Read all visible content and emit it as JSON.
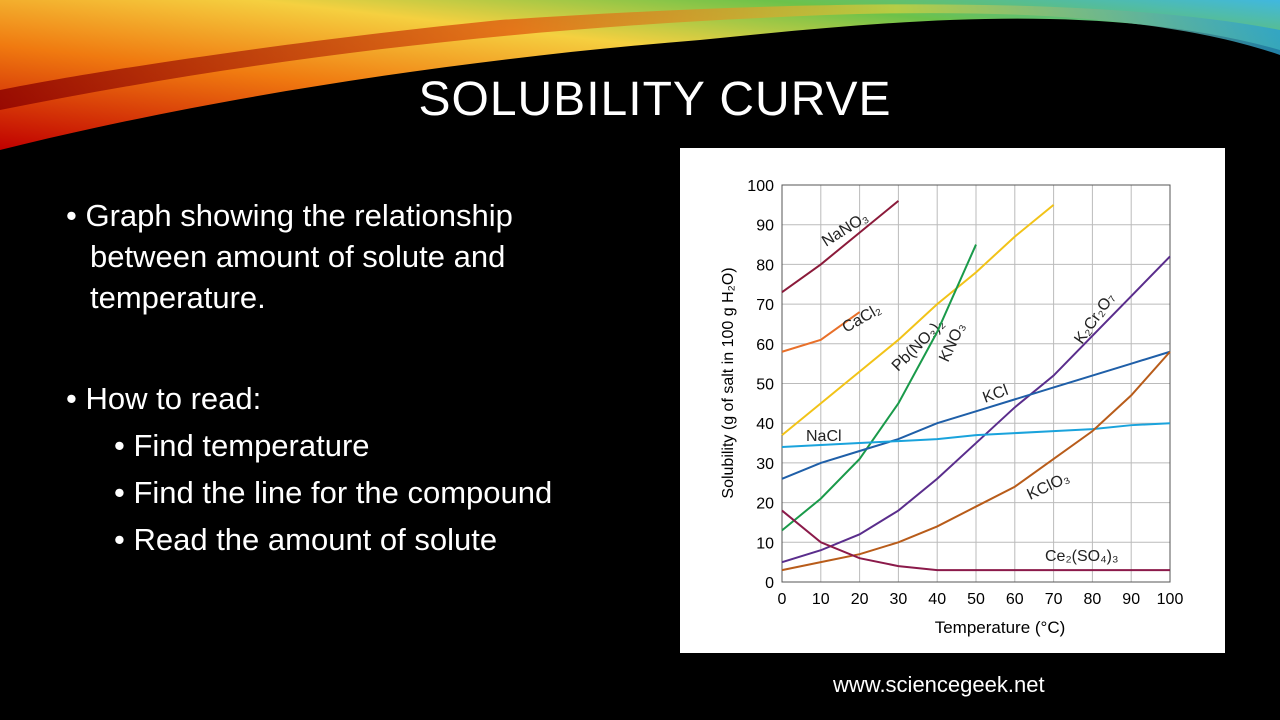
{
  "slide": {
    "title": "SOLUBILITY CURVE",
    "bullets": [
      {
        "text": "Graph showing the relationship between amount of solute and temperature."
      },
      {
        "text": "How to read:",
        "items": [
          "Find temperature",
          "Find the line for the compound",
          "Read the amount of solute"
        ]
      }
    ],
    "source": "www.sciencegeek.net"
  },
  "chart_data": {
    "type": "line",
    "xlabel": "Temperature (°C)",
    "ylabel": "Solubility (g of salt in 100 g H₂O)",
    "x": [
      0,
      10,
      20,
      30,
      40,
      50,
      60,
      70,
      80,
      90,
      100
    ],
    "xlim": [
      0,
      100
    ],
    "ylim": [
      0,
      100
    ],
    "xticks": [
      0,
      10,
      20,
      30,
      40,
      50,
      60,
      70,
      80,
      90,
      100
    ],
    "yticks": [
      0,
      10,
      20,
      30,
      40,
      50,
      60,
      70,
      80,
      90,
      100
    ],
    "grid": true,
    "series": [
      {
        "name": "NaNO₃",
        "color": "#8b1a3a",
        "values": [
          73,
          80,
          88,
          96,
          null,
          null,
          null,
          null,
          null,
          null,
          null
        ]
      },
      {
        "name": "CaCl₂",
        "color": "#e8702a",
        "values": [
          58,
          61,
          68,
          null,
          null,
          null,
          null,
          null,
          null,
          null,
          null
        ]
      },
      {
        "name": "Pb(NO₃)₂",
        "color": "#f2c318",
        "values": [
          37,
          45,
          53,
          61,
          70,
          78,
          87,
          95,
          null,
          null,
          null
        ]
      },
      {
        "name": "KNO₃",
        "color": "#1a9a4a",
        "values": [
          13,
          21,
          31,
          45,
          63,
          85,
          null,
          null,
          null,
          null,
          null
        ]
      },
      {
        "name": "K₂Cr₂O₇",
        "color": "#5a2d8c",
        "values": [
          5,
          8,
          12,
          18,
          26,
          35,
          44,
          52,
          62,
          72,
          82
        ]
      },
      {
        "name": "KCl",
        "color": "#1f5fa8",
        "values": [
          26,
          30,
          33,
          36,
          40,
          43,
          46,
          49,
          52,
          55,
          58
        ]
      },
      {
        "name": "NaCl",
        "color": "#1aa3dc",
        "values": [
          34,
          34.5,
          35,
          35.5,
          36,
          37,
          37.5,
          38,
          38.5,
          39.5,
          40
        ]
      },
      {
        "name": "KClO₃",
        "color": "#b85c1a",
        "values": [
          3,
          5,
          7,
          10,
          14,
          19,
          24,
          31,
          38,
          47,
          58
        ]
      },
      {
        "name": "Ce₂(SO₄)₃",
        "color": "#8b1a4a",
        "values": [
          18,
          10,
          6,
          4,
          3,
          3,
          3,
          3,
          3,
          3,
          3
        ]
      }
    ]
  }
}
